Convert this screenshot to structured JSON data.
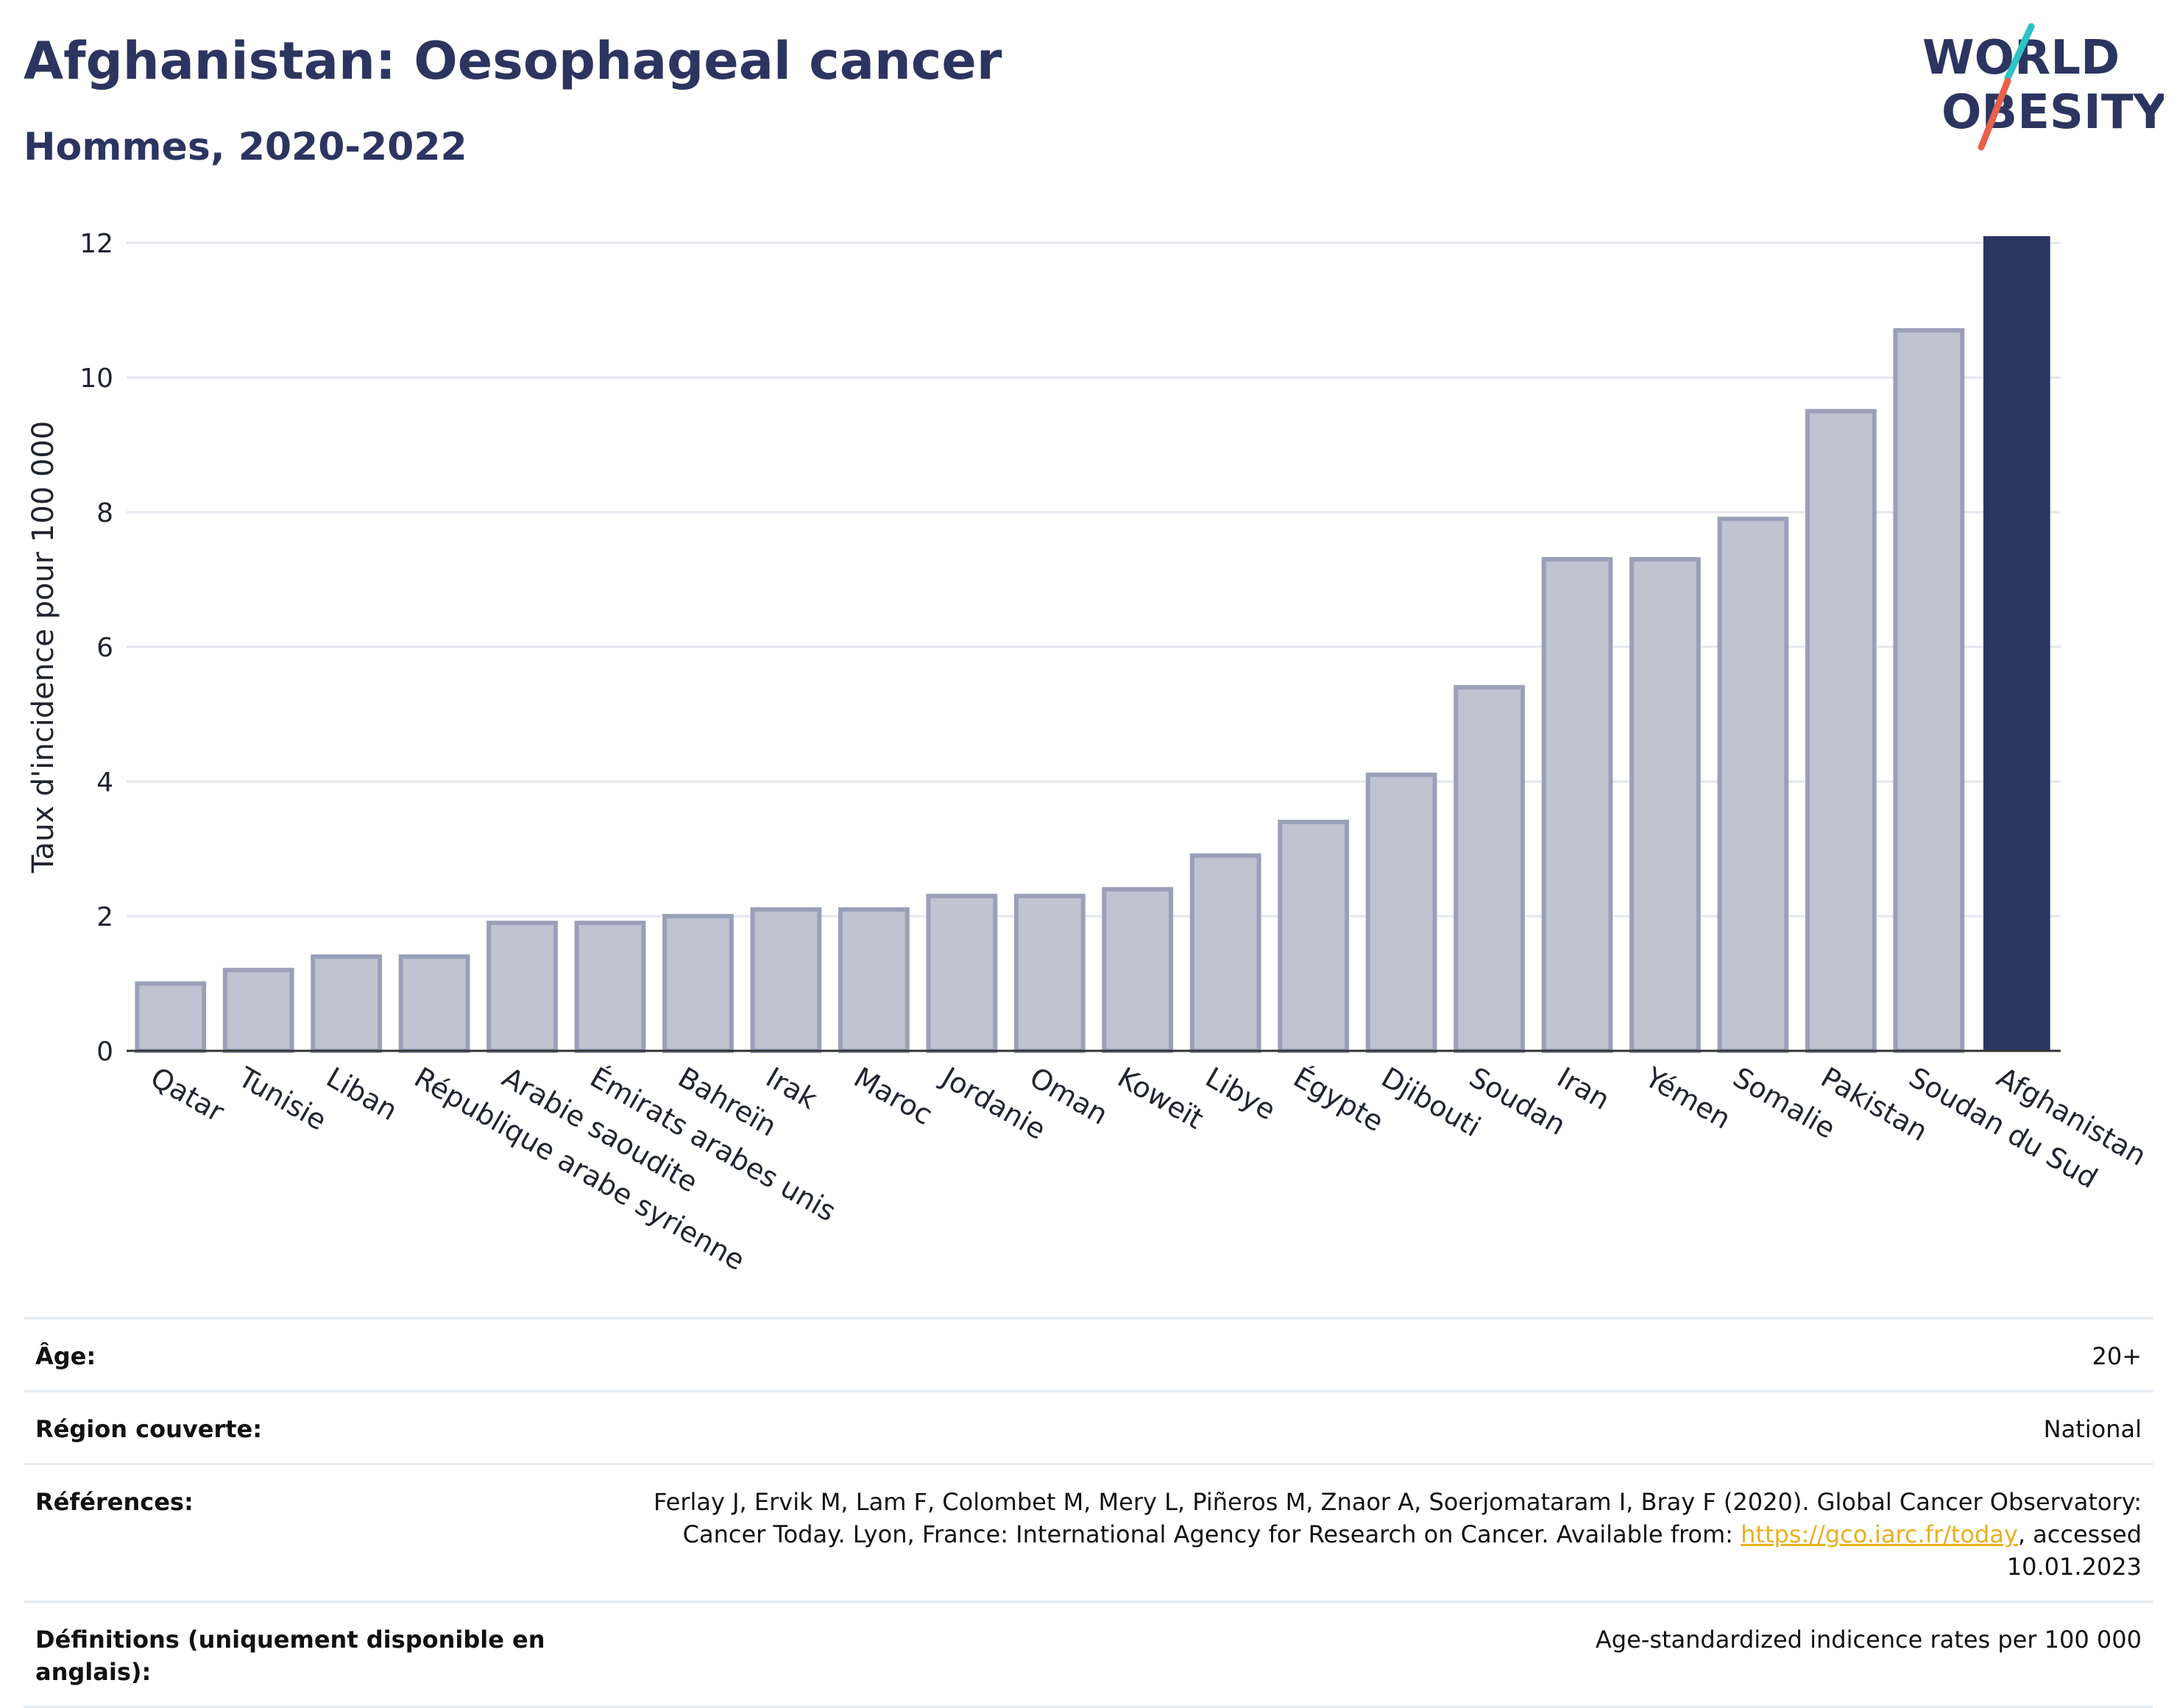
{
  "header": {
    "title": "Afghanistan: Oesophageal cancer",
    "subtitle": "Hommes, 2020-2022"
  },
  "logo": {
    "line1": "WORLD",
    "line2": "OBESITY",
    "slash_colors": [
      "#2ec4c4",
      "#e8604c"
    ],
    "text_color": "#2c3560"
  },
  "chart_data": {
    "type": "bar",
    "ylabel": "Taux d'incidence pour 100 000",
    "ylim": [
      0,
      12
    ],
    "yticks": [
      0,
      2,
      4,
      6,
      8,
      10,
      12
    ],
    "grid": true,
    "categories": [
      "Qatar",
      "Tunisie",
      "Liban",
      "République arabe syrienne",
      "Arabie saoudite",
      "Émirats arabes unis",
      "Bahreïn",
      "Irak",
      "Maroc",
      "Jordanie",
      "Oman",
      "Koweït",
      "Libye",
      "Égypte",
      "Djibouti",
      "Soudan",
      "Iran",
      "Yémen",
      "Somalie",
      "Pakistan",
      "Soudan du Sud",
      "Afghanistan"
    ],
    "values": [
      1.0,
      1.2,
      1.4,
      1.4,
      1.9,
      1.9,
      2.0,
      2.1,
      2.1,
      2.3,
      2.3,
      2.4,
      2.9,
      3.4,
      4.1,
      5.4,
      7.3,
      7.3,
      7.9,
      9.5,
      10.7,
      12.1
    ],
    "highlight": "Afghanistan",
    "colors": {
      "bar": "#c0c4d1",
      "bar_stroke": "#9aa0b8",
      "highlight": "#2c3560",
      "grid": "#e4e7ee",
      "axis": "#333333"
    }
  },
  "meta": {
    "age_label": "Âge:",
    "age_value": "20+",
    "region_label": "Région couverte:",
    "region_value": "National",
    "refs_label": "Références:",
    "refs_text_1": "Ferlay J, Ervik M, Lam F, Colombet M, Mery L, Piñeros M, Znaor A, Soerjomataram I, Bray F (2020). Global Cancer Observatory: Cancer Today. Lyon, France: International Agency for Research on Cancer. Available from: ",
    "refs_link": "https://gco.iarc.fr/today",
    "refs_text_2": ", accessed 10.01.2023",
    "defs_label": "Définitions (uniquement disponible en anglais):",
    "defs_value": "Age-standardized indicence rates per 100 000"
  }
}
